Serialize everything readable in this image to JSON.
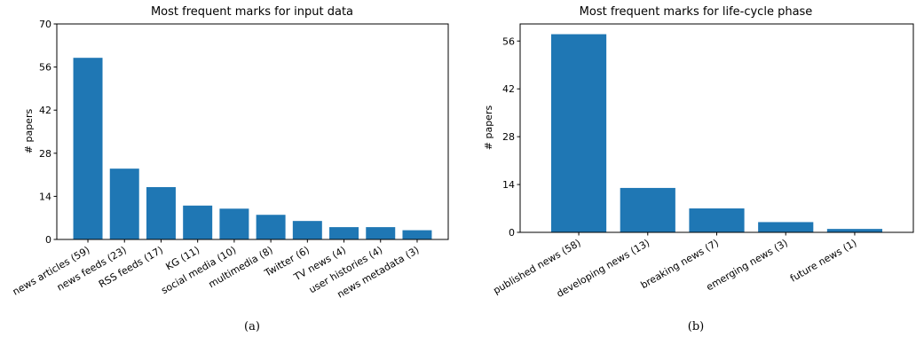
{
  "chart_data": [
    {
      "type": "bar",
      "title": "Most frequent marks for input data",
      "xlabel": "",
      "ylabel": "# papers",
      "ylim": [
        0,
        70
      ],
      "yticks": [
        0,
        14,
        28,
        42,
        56,
        70
      ],
      "categories": [
        "news articles (59)",
        "news feeds (23)",
        "RSS feeds (17)",
        "KG (11)",
        "social media (10)",
        "multimedia (8)",
        "Twitter (6)",
        "TV news (4)",
        "user histories (4)",
        "news metadata (3)"
      ],
      "values": [
        59,
        23,
        17,
        11,
        10,
        8,
        6,
        4,
        4,
        3
      ],
      "color": "#1f77b4",
      "caption": "(a)"
    },
    {
      "type": "bar",
      "title": "Most frequent marks for life-cycle phase",
      "xlabel": "",
      "ylabel": "# papers",
      "ylim": [
        0,
        61
      ],
      "yticks": [
        0,
        14,
        28,
        42,
        56
      ],
      "categories": [
        "published news (58)",
        "developing news (13)",
        "breaking news (7)",
        "emerging news (3)",
        "future news (1)"
      ],
      "values": [
        58,
        13,
        7,
        3,
        1
      ],
      "color": "#1f77b4",
      "caption": "(b)"
    }
  ]
}
